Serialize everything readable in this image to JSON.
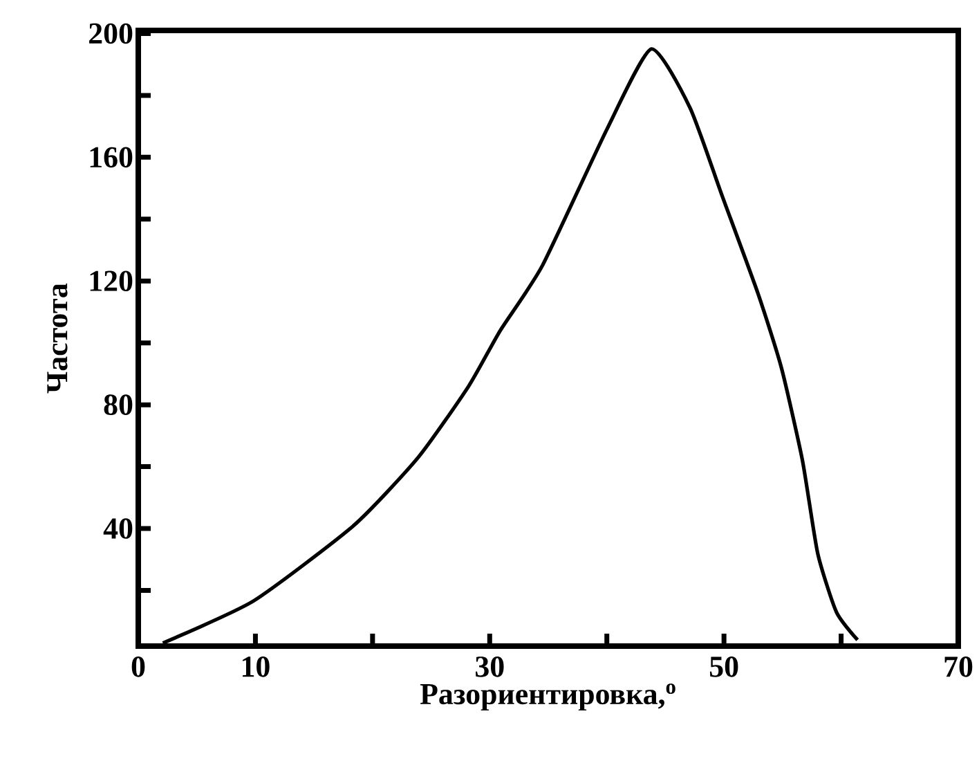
{
  "chart_data": {
    "type": "line",
    "xlabel": "Разориентировка,$^{o}$",
    "ylabel": "Частота",
    "x": [
      2.1,
      9.8,
      18.4,
      23.9,
      28.2,
      30.9,
      34.5,
      40,
      43.8,
      47.1,
      49.8,
      52.9,
      54.9,
      56.7,
      58,
      59.6,
      61.4
    ],
    "series": [
      {
        "color": "#000000",
        "values": [
          3,
          16.5,
          41,
          63,
          86,
          104,
          125,
          169,
          195,
          176,
          148,
          116,
          92,
          62,
          32,
          13,
          4
        ]
      }
    ],
    "xlim": [
      0,
      70
    ],
    "ylim": [
      2,
      201
    ],
    "xticks": [
      0,
      10,
      {
        "value": 20,
        "label": null
      },
      30,
      {
        "value": 40,
        "label": null
      },
      50,
      {
        "value": 60,
        "label": null
      },
      70
    ],
    "yticks": [
      {
        "value": 20,
        "label": null
      },
      40,
      {
        "value": 60,
        "label": null
      },
      80,
      {
        "value": 100,
        "label": null
      },
      120,
      {
        "value": 140,
        "label": null
      },
      160,
      {
        "value": 180,
        "label": null
      },
      200
    ],
    "grid": false,
    "marker": "none",
    "line_style": "solid"
  }
}
